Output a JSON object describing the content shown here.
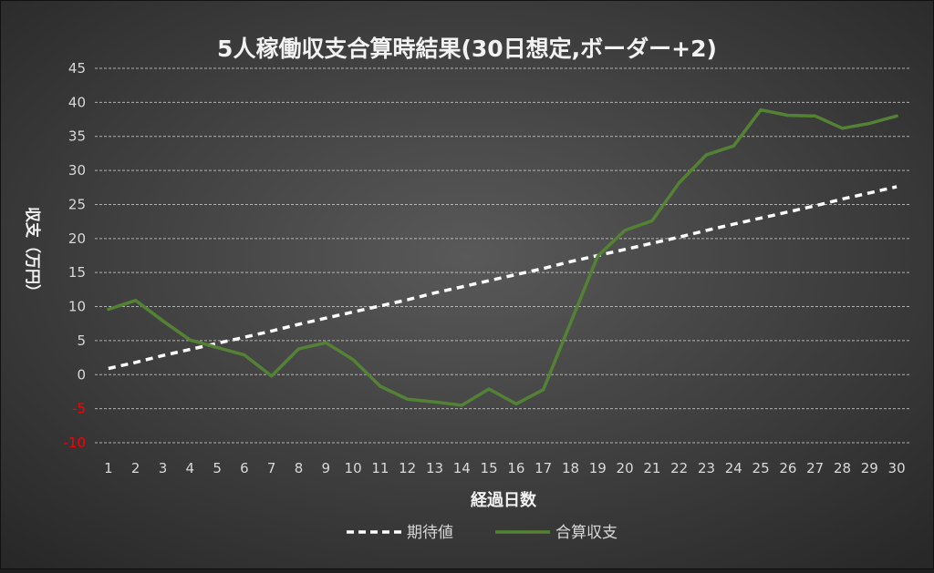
{
  "chart_data": {
    "type": "line",
    "title": "5人稼働収支合算時結果(30日想定,ボーダー+2)",
    "xlabel": "経過日数",
    "ylabel": "収支（万円）",
    "ylim": [
      -10,
      45
    ],
    "yticks": [
      -10,
      -5,
      0,
      5,
      10,
      15,
      20,
      25,
      30,
      35,
      40,
      45
    ],
    "negative_tick_color": "#ff0000",
    "grid": true,
    "legend_position": "bottom",
    "x": [
      1,
      2,
      3,
      4,
      5,
      6,
      7,
      8,
      9,
      10,
      11,
      12,
      13,
      14,
      15,
      16,
      17,
      18,
      19,
      20,
      21,
      22,
      23,
      24,
      25,
      26,
      27,
      28,
      29,
      30
    ],
    "series": [
      {
        "name": "期待値",
        "color": "#ffffff",
        "style": "dashed",
        "values": [
          0.9,
          1.8,
          2.8,
          3.7,
          4.6,
          5.5,
          6.4,
          7.4,
          8.3,
          9.2,
          10.1,
          11.0,
          12.0,
          12.9,
          13.8,
          14.7,
          15.6,
          16.6,
          17.5,
          18.4,
          19.3,
          20.2,
          21.2,
          22.1,
          23.0,
          23.9,
          24.8,
          25.8,
          26.7,
          27.6
        ]
      },
      {
        "name": "合算収支",
        "color": "#548235",
        "style": "solid",
        "values": [
          9.6,
          10.9,
          7.9,
          5.1,
          4.0,
          2.9,
          -0.2,
          3.8,
          4.7,
          2.2,
          -1.7,
          -3.6,
          -4.0,
          -4.5,
          -2.1,
          -4.3,
          -2.2,
          7.6,
          17.4,
          21.2,
          22.6,
          28.2,
          32.3,
          33.6,
          38.9,
          38.1,
          38.0,
          36.2,
          36.9,
          38.0
        ]
      }
    ]
  }
}
